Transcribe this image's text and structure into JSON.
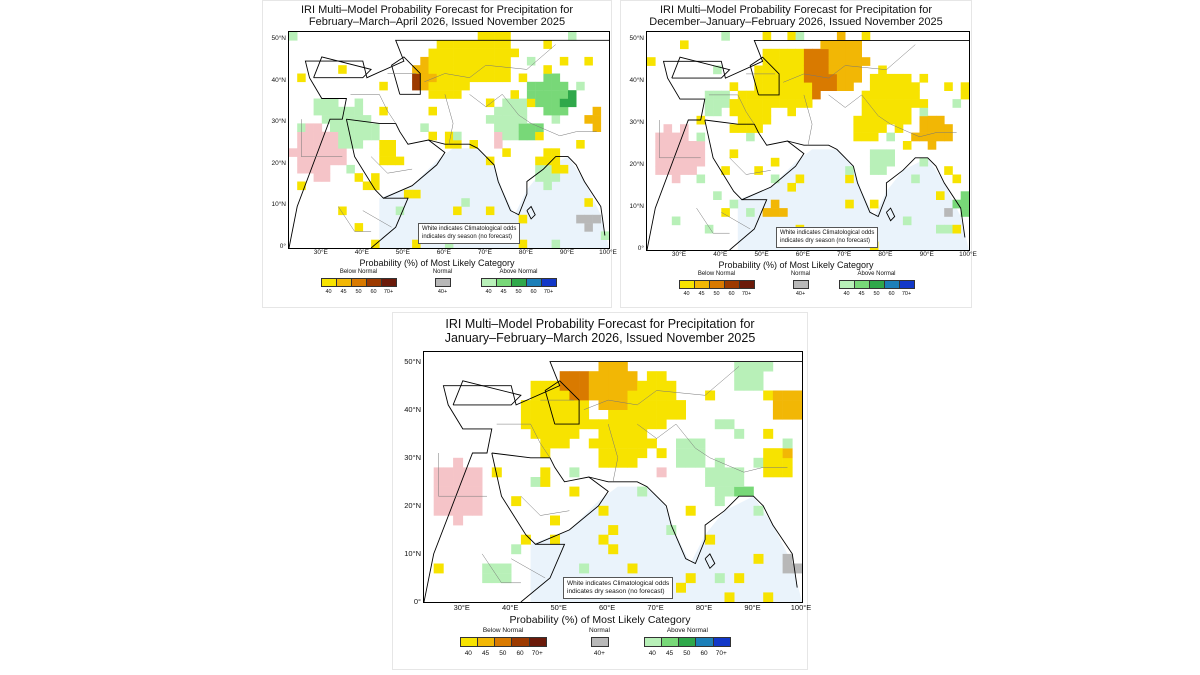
{
  "panels": [
    {
      "title_line1": "IRI Multi–Model Probability Forecast for Precipitation for",
      "title_line2": "February–March–April 2026, Issued November 2025"
    },
    {
      "title_line1": "IRI Multi–Model Probability Forecast for Precipitation for",
      "title_line2": "December–January–February 2026, Issued November 2025"
    },
    {
      "title_line1": "IRI Multi–Model Probability Forecast for Precipitation for",
      "title_line2": "January–February–March 2026, Issued November 2025"
    }
  ],
  "map": {
    "lat_labels": [
      "50°N",
      "40°N",
      "30°N",
      "20°N",
      "10°N",
      "0°"
    ],
    "lon_labels": [
      "30°E",
      "40°E",
      "50°E",
      "60°E",
      "70°E",
      "80°E",
      "90°E",
      "100°E"
    ],
    "note_line1": "White indicates Climatological odds",
    "note_line2": "indicates dry season (no forecast)"
  },
  "legend": {
    "title": "Probability (%) of Most Likely Category",
    "below_label": "Below Normal",
    "normal_label": "Normal",
    "above_label": "Above Normal",
    "below_ticks": [
      "40",
      "45",
      "50",
      "60",
      "70+"
    ],
    "normal_ticks": [
      "40+"
    ],
    "above_ticks": [
      "40",
      "45",
      "50",
      "60",
      "70+"
    ],
    "below_colors": [
      "#f7e300",
      "#f2b705",
      "#d97a00",
      "#9c3a00",
      "#6b1a0a"
    ],
    "normal_colors": [
      "#b8b8b8"
    ],
    "above_colors": [
      "#b8f0b8",
      "#78d878",
      "#2fa84a",
      "#1c7fb8",
      "#1238c8"
    ],
    "dry_season_color": "#f5c4c8",
    "ocean_color": "#eaf3fb"
  }
}
